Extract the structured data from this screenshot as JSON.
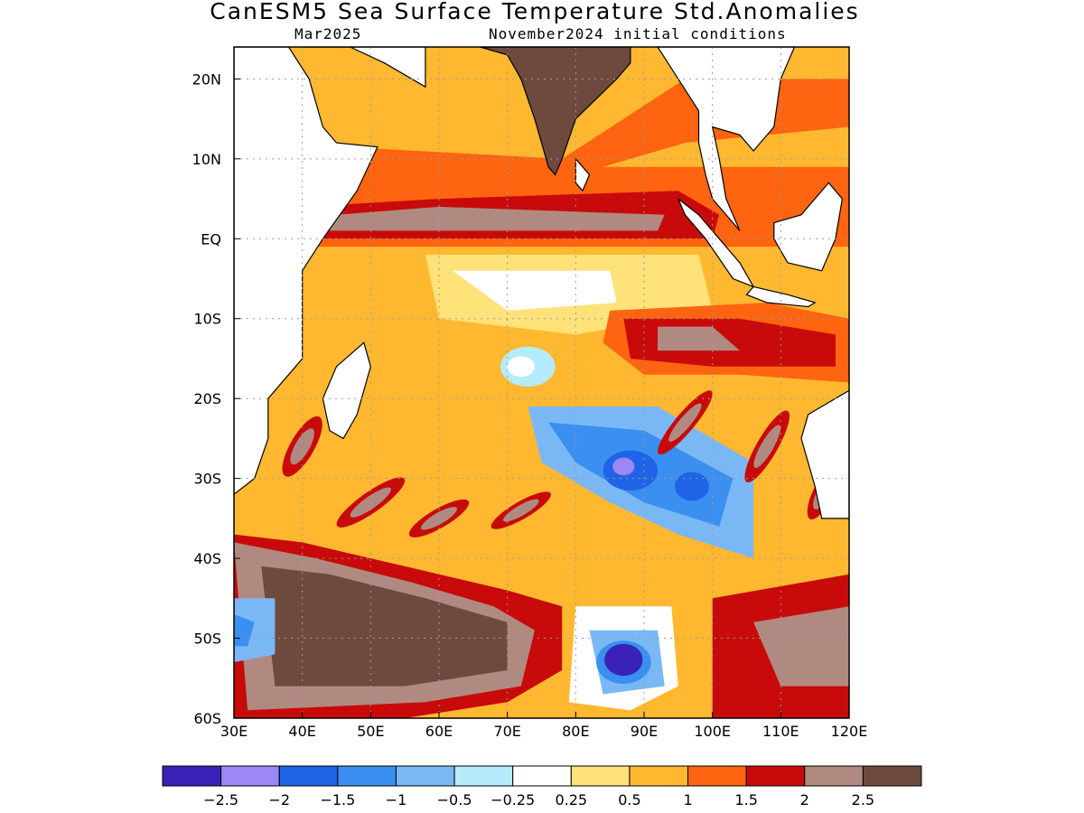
{
  "header": {
    "title": "CanESM5 Sea Surface Temperature Std.Anomalies",
    "valid_month": "Mar2025",
    "init_label": "November2024 initial conditions"
  },
  "chart_data": {
    "type": "heatmap",
    "variable": "Sea Surface Temperature standardized anomaly",
    "x_axis": {
      "ticks": [
        "30E",
        "40E",
        "50E",
        "60E",
        "70E",
        "80E",
        "90E",
        "100E",
        "110E",
        "120E"
      ],
      "range": [
        30,
        120
      ],
      "unit": "degrees east"
    },
    "y_axis": {
      "ticks": [
        "20N",
        "10N",
        "EQ",
        "10S",
        "20S",
        "30S",
        "40S",
        "50S",
        "60S"
      ],
      "range": [
        -60,
        24
      ],
      "unit": "degrees north"
    },
    "grid": true,
    "colorbar": {
      "placement": "bottom",
      "labels": [
        "-2.5",
        "-2",
        "-1.5",
        "-1",
        "-0.5",
        "-0.25",
        "0.25",
        "0.5",
        "1",
        "1.5",
        "2",
        "2.5"
      ],
      "colors": [
        "#3a22b8",
        "#9c87f5",
        "#1f64e6",
        "#3a8ff0",
        "#7ab8f5",
        "#b4ecfb",
        "#ffffff",
        "#ffe27a",
        "#ffb830",
        "#ff6410",
        "#c80a0a",
        "#b08a80",
        "#6e4a3e"
      ]
    },
    "regions": [
      {
        "lon": [
          30,
          120
        ],
        "lat": [
          -60,
          24
        ],
        "level": "0.5 to 1"
      },
      {
        "lon": [
          77,
          83
        ],
        "lat": [
          7,
          24
        ],
        "level": ">2.5",
        "note": "India (land, model fill)"
      },
      {
        "lon": [
          40,
          100
        ],
        "lat": [
          0,
          4
        ],
        "level": "1.5 to 2.5",
        "note": "equatorial warm band"
      },
      {
        "lon": [
          55,
          90
        ],
        "lat": [
          -12,
          -2
        ],
        "level": "0.25 to 0.5"
      },
      {
        "lon": [
          70,
          78
        ],
        "lat": [
          -18,
          -13
        ],
        "level": "-0.25 to 0.25"
      },
      {
        "lon": [
          77,
          107
        ],
        "lat": [
          -40,
          -22
        ],
        "level": "-1.5 to -0.5",
        "note": "cool anomaly band"
      },
      {
        "lon": [
          83,
          93
        ],
        "lat": [
          -33,
          -28
        ],
        "level": "-2 to -1.5"
      },
      {
        "lon": [
          83,
          92
        ],
        "lat": [
          -57,
          -50
        ],
        "level": "-2.5 to -1.5",
        "note": "strong cold anomaly"
      },
      {
        "lon": [
          30,
          78
        ],
        "lat": [
          -58,
          -40
        ],
        "level": "2 to 2.5+",
        "note": "southern warm anomaly"
      },
      {
        "lon": [
          30,
          35
        ],
        "lat": [
          -53,
          -45
        ],
        "level": "-1 to 0"
      },
      {
        "lon": [
          88,
          110
        ],
        "lat": [
          -18,
          -8
        ],
        "level": "1.5 to 2",
        "note": "south-east warm patch"
      },
      {
        "lon": [
          105,
          120
        ],
        "lat": [
          -40,
          -20
        ],
        "level": "1 to 2.5",
        "note": "off western Australia"
      }
    ]
  }
}
